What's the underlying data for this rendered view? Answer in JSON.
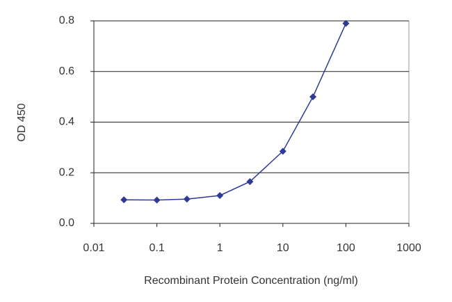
{
  "chart_data": {
    "type": "line",
    "x_label": "Recombinant Protein Concentration (ng/ml)",
    "y_label": "OD 450",
    "x": [
      0.03,
      0.1,
      0.3,
      1,
      3,
      10,
      30,
      100
    ],
    "series": [
      {
        "color": "#2e3a96",
        "values": [
          0.093,
          0.092,
          0.096,
          0.11,
          0.165,
          0.285,
          0.5,
          0.79
        ]
      }
    ],
    "xlim": [
      0.01,
      1000
    ],
    "xticks": [
      0.01,
      0.1,
      1,
      10,
      100,
      1000
    ],
    "xscale": "log",
    "ylim": [
      0,
      0.8
    ],
    "yticks": [
      {
        "value": 0,
        "label": "0.0"
      },
      0.2,
      0.4,
      0.6,
      0.8
    ],
    "grid": true
  }
}
